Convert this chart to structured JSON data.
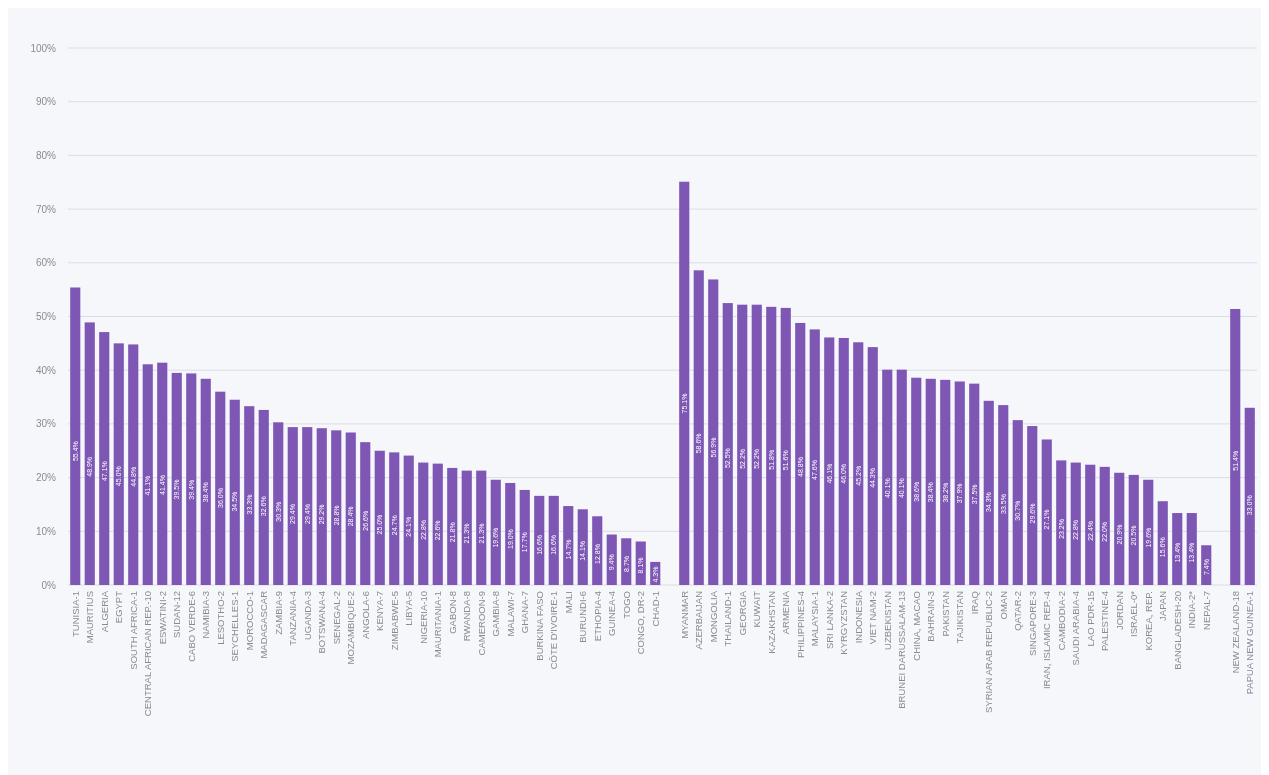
{
  "chart_data": {
    "type": "bar",
    "color": "#7e57b5",
    "grid": "y",
    "ylim": [
      0,
      100
    ],
    "yticks": [
      {
        "value": 0,
        "label": "0%"
      },
      {
        "value": 10,
        "label": "10%"
      },
      {
        "value": 20,
        "label": "20%"
      },
      {
        "value": 30,
        "label": "30%"
      },
      {
        "value": 40,
        "label": "40%"
      },
      {
        "value": 50,
        "label": "50%"
      },
      {
        "value": 60,
        "label": "60%"
      },
      {
        "value": 70,
        "label": "70%"
      },
      {
        "value": 80,
        "label": "80%"
      },
      {
        "value": 90,
        "label": "90%"
      },
      {
        "value": 100,
        "label": "100%"
      }
    ],
    "categories": [
      "TUNISIA-1",
      "MAURITIUS",
      "ALGERIA",
      "EGYPT",
      "SOUTH AFRICA-1",
      "CENTRAL AFRICAN REP.-10",
      "ESWATINI-2",
      "SUDAN-12",
      "CABO VERDE-6",
      "NAMIBIA-3",
      "LESOTHO-2",
      "SEYCHELLES-1",
      "MOROCCO-1",
      "MADAGASCAR",
      "ZAMBIA-9",
      "TANZANIA-4",
      "UGANDA-3",
      "BOTSWANA-4",
      "SENEGAL-2",
      "MOZAMBIQUE-2",
      "ANGOLA-6",
      "KENYA-7",
      "ZIMBABWE-5",
      "LIBYA-5",
      "NIGERIA-10",
      "MAURITANIA-1",
      "GABON-8",
      "RWANDA-8",
      "CAMEROON-9",
      "GAMBIA-8",
      "MALAWI-7",
      "GHANA-7",
      "BURKINA FASO",
      "CÔTE D'IVOIRE-1",
      "MALI",
      "BURUNDI-6",
      "ETHOPIA-4",
      "GUINEA-4",
      "TOGO",
      "CONGO, DR-2",
      "CHAD-1",
      null,
      "MYANMAR",
      "AZERBAIJAN",
      "MONGOLIA",
      "THAILAND-1",
      "GEORGIA",
      "KUWAIT",
      "KAZAKHSTAN",
      "ARMENIA",
      "PHILIPPINES-4",
      "MALAYSIA-1",
      "SRI LANKA-2",
      "KYRGYZSTAN",
      "INDONESIA",
      "VIET NAM-2",
      "UZBEKISTAN",
      "BRUNEI DARUSSALAM-13",
      "CHINA, MACAO",
      "BAHRAIN-3",
      "PAKISTAN",
      "TAJIKISTAN",
      "IRAQ",
      "SYRIAN ARAB REPUBLIC-2",
      "OMAN",
      "QATAR-2",
      "SINGAPORE-3",
      "IRAN, ISLAMIC REP.-4",
      "CAMBODIA-2",
      "SAUDI ARABIA-4",
      "LAO PDR-15",
      "PALESTINE-4",
      "JORDAN",
      "ISRAEL-0*",
      "KOREA, REP.",
      "JAPAN",
      "BANGLADESH-20",
      "INDIA-2*",
      "NEPAL-7",
      null,
      "NEW ZEALAND-18",
      "PAPUA NEW GUINEA-1"
    ],
    "values": [
      55.4,
      48.9,
      47.1,
      45.0,
      44.8,
      41.1,
      41.4,
      39.5,
      39.4,
      38.4,
      36.0,
      34.5,
      33.3,
      32.6,
      30.3,
      29.4,
      29.4,
      29.2,
      28.8,
      28.4,
      26.6,
      25.0,
      24.7,
      24.1,
      22.8,
      22.6,
      21.8,
      21.3,
      21.3,
      19.6,
      19.0,
      17.7,
      16.6,
      16.6,
      14.7,
      14.1,
      12.8,
      9.4,
      8.7,
      8.1,
      4.3,
      null,
      75.1,
      58.6,
      56.9,
      52.5,
      52.2,
      52.2,
      51.8,
      51.6,
      48.8,
      47.6,
      46.1,
      46.0,
      45.2,
      44.3,
      40.1,
      40.1,
      38.6,
      38.4,
      38.2,
      37.9,
      37.5,
      34.3,
      33.5,
      30.7,
      29.6,
      27.1,
      23.2,
      22.8,
      22.4,
      22.0,
      20.9,
      20.5,
      19.6,
      15.6,
      13.4,
      13.4,
      7.4,
      null,
      51.4,
      33.0
    ],
    "value_labels": [
      "55.4%",
      "48.9%",
      "47.1%",
      "45.0%",
      "44.8%",
      "41.1%",
      "41.4%",
      "39.5%",
      "39.4%",
      "38.4%",
      "36.0%",
      "34.5%",
      "33.3%",
      "32.6%",
      "30.3%",
      "29.4%",
      "29.4%",
      "29.2%",
      "28.8%",
      "28.4%",
      "26.6%",
      "25.0%",
      "24.7%",
      "24.1%",
      "22.8%",
      "22.6%",
      "21.8%",
      "21.3%",
      "21.3%",
      "19.6%",
      "19.0%",
      "17.7%",
      "16.6%",
      "16.6%",
      "14.7%",
      "14.1%",
      "12.8%",
      "9.4%",
      "8.7%",
      "8.1%",
      "4.3%",
      null,
      "75.1%",
      "58.6%",
      "56.9%",
      "52.5%",
      "52.2%",
      "52.2%",
      "51.8%",
      "51.6%",
      "48.8%",
      "47.6%",
      "46.1%",
      "46.0%",
      "45.2%",
      "44.3%",
      "40.1%",
      "40.1%",
      "38.6%",
      "38.4%",
      "38.2%",
      "37.9%",
      "37.5%",
      "34.3%",
      "33.5%",
      "30.7%",
      "29.6%",
      "27.1%",
      "23.2%",
      "22.8%",
      "22.4%",
      "22.0%",
      "20.9%",
      "20.5%",
      "19.6%",
      "15.6%",
      "13.4%",
      "13.4%",
      "7.4%",
      null,
      "51.4%",
      "33.0%"
    ]
  }
}
